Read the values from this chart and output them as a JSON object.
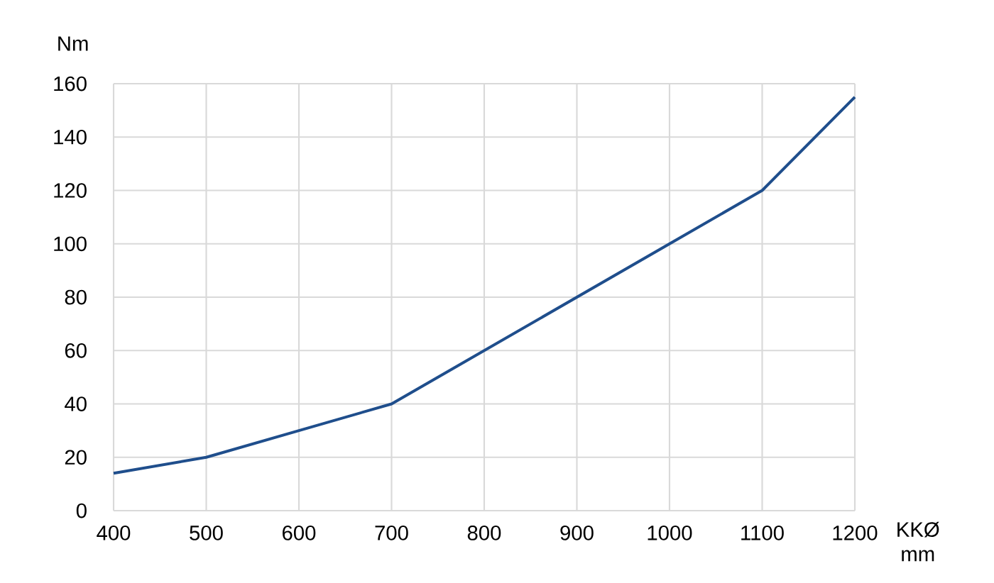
{
  "chart_data": {
    "type": "line",
    "xlabel": "KKØ mm",
    "ylabel": "Nm",
    "x": [
      400,
      500,
      600,
      700,
      800,
      900,
      1000,
      1100,
      1200
    ],
    "series": [
      {
        "color": "#1f4e8c",
        "values": [
          14,
          20,
          30,
          40,
          60,
          80,
          100,
          120,
          155
        ]
      }
    ],
    "xlim": [
      400,
      1200
    ],
    "xticks": [
      400,
      500,
      600,
      700,
      800,
      900,
      1000,
      1100,
      1200
    ],
    "ylim": [
      0,
      160
    ],
    "yticks": [
      0,
      20,
      40,
      60,
      80,
      100,
      120,
      140,
      160
    ],
    "grid": true,
    "marker": "none",
    "line_style": "solid"
  }
}
